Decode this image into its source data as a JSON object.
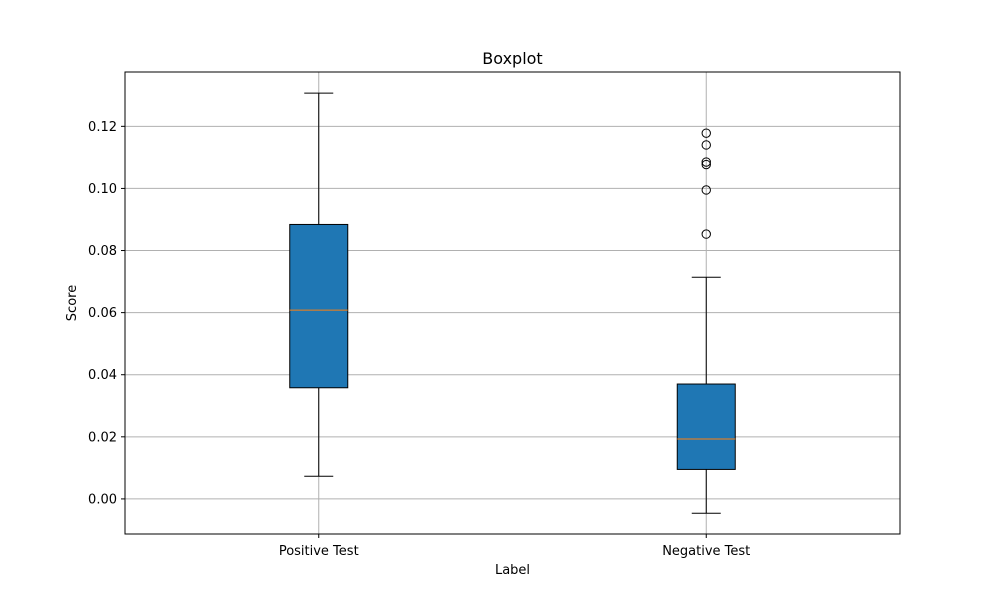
{
  "chart_data": {
    "type": "boxplot",
    "title": "Boxplot",
    "xlabel": "Label",
    "ylabel": "Score",
    "categories": [
      "Positive Test",
      "Negative Test"
    ],
    "ylim": [
      -0.0113,
      0.1375
    ],
    "yticks": [
      0.0,
      0.02,
      0.04,
      0.06,
      0.08,
      0.1,
      0.12
    ],
    "ytick_labels": [
      "0.00",
      "0.02",
      "0.04",
      "0.06",
      "0.08",
      "0.10",
      "0.12"
    ],
    "grid": true,
    "boxes": [
      {
        "category": "Positive Test",
        "whisker_low": 0.0073,
        "q1": 0.0358,
        "median": 0.0608,
        "q3": 0.0884,
        "whisker_high": 0.1307,
        "outliers": []
      },
      {
        "category": "Negative Test",
        "whisker_low": -0.0046,
        "q1": 0.0095,
        "median": 0.0193,
        "q3": 0.037,
        "whisker_high": 0.0714,
        "outliers": [
          0.0853,
          0.0995,
          0.1077,
          0.1085,
          0.114,
          0.1178
        ]
      }
    ],
    "colors": {
      "box_fill": "#1f77b4",
      "median": "#ff7f0e",
      "grid": "#b0b0b0",
      "edge": "#000000"
    }
  }
}
